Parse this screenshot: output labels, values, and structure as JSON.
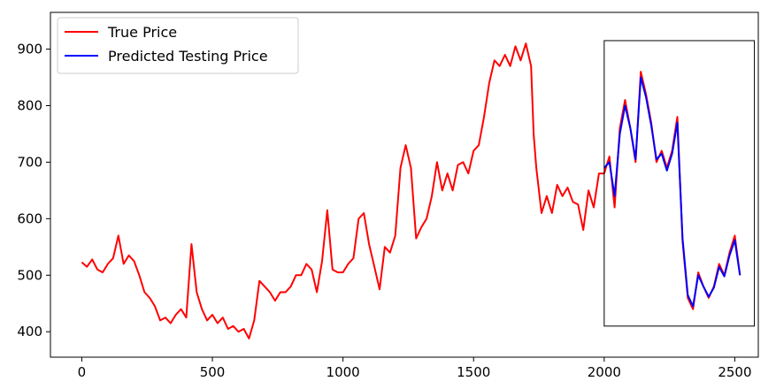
{
  "chart_data": {
    "type": "line",
    "title": "",
    "xlabel": "",
    "ylabel": "",
    "xlim": [
      -120,
      2590
    ],
    "ylim": [
      355,
      965
    ],
    "xticks": [
      0,
      500,
      1000,
      1500,
      2000,
      2500
    ],
    "yticks": [
      400,
      500,
      600,
      700,
      800,
      900
    ],
    "xtick_labels": [
      "0",
      "500",
      "1000",
      "1500",
      "2000",
      "2500"
    ],
    "ytick_labels": [
      "400",
      "500",
      "600",
      "700",
      "800",
      "900"
    ],
    "legend": {
      "placement": "top-left",
      "entries": [
        "True Price",
        "Predicted Testing Price"
      ]
    },
    "highlight_box": {
      "x": [
        2000,
        2575
      ],
      "y": [
        410,
        915
      ]
    },
    "series": [
      {
        "name": "True Price",
        "color": "#ff0000",
        "points": [
          [
            0,
            523
          ],
          [
            20,
            515
          ],
          [
            40,
            528
          ],
          [
            60,
            510
          ],
          [
            80,
            505
          ],
          [
            100,
            520
          ],
          [
            120,
            530
          ],
          [
            140,
            570
          ],
          [
            160,
            520
          ],
          [
            180,
            535
          ],
          [
            200,
            525
          ],
          [
            220,
            500
          ],
          [
            240,
            470
          ],
          [
            260,
            460
          ],
          [
            280,
            445
          ],
          [
            300,
            420
          ],
          [
            320,
            425
          ],
          [
            340,
            415
          ],
          [
            360,
            430
          ],
          [
            380,
            440
          ],
          [
            400,
            425
          ],
          [
            420,
            555
          ],
          [
            440,
            470
          ],
          [
            460,
            440
          ],
          [
            480,
            420
          ],
          [
            500,
            430
          ],
          [
            520,
            415
          ],
          [
            540,
            425
          ],
          [
            560,
            405
          ],
          [
            580,
            410
          ],
          [
            600,
            400
          ],
          [
            620,
            405
          ],
          [
            640,
            388
          ],
          [
            660,
            420
          ],
          [
            680,
            490
          ],
          [
            700,
            480
          ],
          [
            720,
            470
          ],
          [
            740,
            455
          ],
          [
            760,
            470
          ],
          [
            780,
            470
          ],
          [
            800,
            480
          ],
          [
            820,
            500
          ],
          [
            840,
            500
          ],
          [
            860,
            520
          ],
          [
            880,
            510
          ],
          [
            900,
            470
          ],
          [
            920,
            525
          ],
          [
            940,
            615
          ],
          [
            960,
            510
          ],
          [
            980,
            505
          ],
          [
            1000,
            505
          ],
          [
            1020,
            520
          ],
          [
            1040,
            530
          ],
          [
            1060,
            600
          ],
          [
            1080,
            610
          ],
          [
            1100,
            555
          ],
          [
            1120,
            515
          ],
          [
            1140,
            475
          ],
          [
            1160,
            550
          ],
          [
            1180,
            540
          ],
          [
            1200,
            570
          ],
          [
            1220,
            690
          ],
          [
            1240,
            730
          ],
          [
            1260,
            690
          ],
          [
            1280,
            565
          ],
          [
            1300,
            585
          ],
          [
            1320,
            600
          ],
          [
            1340,
            640
          ],
          [
            1360,
            700
          ],
          [
            1380,
            650
          ],
          [
            1400,
            680
          ],
          [
            1420,
            650
          ],
          [
            1440,
            695
          ],
          [
            1460,
            700
          ],
          [
            1480,
            680
          ],
          [
            1500,
            720
          ],
          [
            1520,
            730
          ],
          [
            1540,
            780
          ],
          [
            1560,
            840
          ],
          [
            1580,
            880
          ],
          [
            1600,
            870
          ],
          [
            1620,
            890
          ],
          [
            1640,
            870
          ],
          [
            1660,
            905
          ],
          [
            1680,
            880
          ],
          [
            1700,
            910
          ],
          [
            1720,
            870
          ],
          [
            1730,
            750
          ],
          [
            1740,
            690
          ],
          [
            1760,
            610
          ],
          [
            1780,
            640
          ],
          [
            1800,
            610
          ],
          [
            1820,
            660
          ],
          [
            1840,
            640
          ],
          [
            1860,
            655
          ],
          [
            1880,
            630
          ],
          [
            1900,
            625
          ],
          [
            1920,
            580
          ],
          [
            1940,
            650
          ],
          [
            1960,
            620
          ],
          [
            1980,
            680
          ],
          [
            2000,
            680
          ],
          [
            2020,
            710
          ],
          [
            2040,
            620
          ],
          [
            2060,
            760
          ],
          [
            2080,
            810
          ],
          [
            2100,
            760
          ],
          [
            2120,
            700
          ],
          [
            2140,
            860
          ],
          [
            2160,
            820
          ],
          [
            2180,
            770
          ],
          [
            2200,
            700
          ],
          [
            2220,
            720
          ],
          [
            2240,
            690
          ],
          [
            2260,
            720
          ],
          [
            2280,
            780
          ],
          [
            2300,
            560
          ],
          [
            2320,
            460
          ],
          [
            2340,
            440
          ],
          [
            2360,
            505
          ],
          [
            2380,
            480
          ],
          [
            2400,
            460
          ],
          [
            2420,
            480
          ],
          [
            2440,
            520
          ],
          [
            2460,
            500
          ],
          [
            2480,
            540
          ],
          [
            2500,
            570
          ],
          [
            2520,
            500
          ]
        ]
      },
      {
        "name": "Predicted Testing Price",
        "color": "#0000ff",
        "points": [
          [
            2000,
            690
          ],
          [
            2020,
            700
          ],
          [
            2040,
            640
          ],
          [
            2060,
            750
          ],
          [
            2080,
            800
          ],
          [
            2100,
            760
          ],
          [
            2120,
            705
          ],
          [
            2140,
            850
          ],
          [
            2160,
            815
          ],
          [
            2180,
            765
          ],
          [
            2200,
            705
          ],
          [
            2220,
            715
          ],
          [
            2240,
            685
          ],
          [
            2260,
            715
          ],
          [
            2280,
            770
          ],
          [
            2300,
            565
          ],
          [
            2320,
            465
          ],
          [
            2340,
            445
          ],
          [
            2360,
            500
          ],
          [
            2380,
            480
          ],
          [
            2400,
            462
          ],
          [
            2420,
            478
          ],
          [
            2440,
            515
          ],
          [
            2460,
            498
          ],
          [
            2480,
            535
          ],
          [
            2500,
            562
          ],
          [
            2520,
            500
          ]
        ]
      }
    ]
  }
}
